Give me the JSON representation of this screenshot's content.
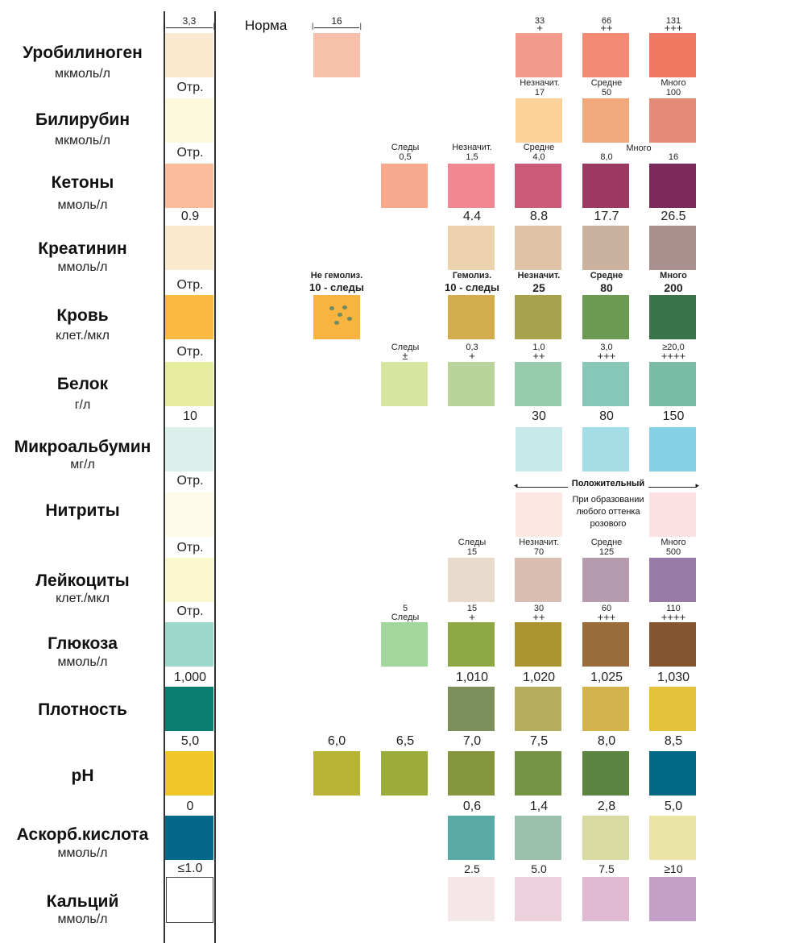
{
  "header": {
    "strip_width_label": "3,3",
    "norm_label": "Норма",
    "norm_width_label": "16"
  },
  "rows": [
    {
      "name": "Уробилиноген",
      "unit": "мкмоль/л",
      "ref_label": "",
      "ref_color": "#fbe9cf",
      "extra_label": "",
      "extra_color": "#f7c0aa",
      "pads": [
        {
          "color": "#f39b8b",
          "label": "33",
          "sub": "+"
        },
        {
          "color": "#f28973",
          "label": "66",
          "sub": "++"
        },
        {
          "color": "#ef7862",
          "label": "131",
          "sub": "+++"
        }
      ]
    },
    {
      "name": "Билирубин",
      "unit": "мкмоль/л",
      "ref_label": "Отр.",
      "ref_color": "#fdf9dc",
      "pads": [
        {
          "color": "#fdd19a",
          "label": "Незначит.",
          "sub": "17"
        },
        {
          "color": "#f2a87d",
          "label": "Средне",
          "sub": "50"
        },
        {
          "color": "#e38b77",
          "label": "Много",
          "sub": "100"
        }
      ]
    },
    {
      "name": "Кетоны",
      "unit": "ммоль/л",
      "ref_label": "Отр.",
      "ref_color": "#fbbc9c",
      "pads": [
        {
          "color": "#f8a88d",
          "label": "Следы",
          "sub": "0,5"
        },
        {
          "color": "#f18891",
          "label": "Незначит.",
          "sub": "1,5"
        },
        {
          "color": "#cd5a78",
          "label": "Средне",
          "sub": "4,0"
        },
        {
          "color": "#9c3a62",
          "label": "Много",
          "sub": "8,0"
        },
        {
          "color": "#7b2a5b",
          "label": "",
          "sub": "16"
        }
      ]
    },
    {
      "name": "Креатинин",
      "unit": "ммоль/л",
      "ref_label": "0.9",
      "ref_color": "#fbe9ce",
      "pads": [
        {
          "color": "#ecd3ad",
          "label": "4.4"
        },
        {
          "color": "#dfc1a6",
          "label": "8.8"
        },
        {
          "color": "#cbb29f",
          "label": "17.7"
        },
        {
          "color": "#a9908f",
          "label": "26.5"
        }
      ]
    },
    {
      "name": "Кровь",
      "unit": "клет./мкл",
      "ref_label": "Отр.",
      "ref_color": "#fbb940",
      "extra_label": "Не гемолиз.",
      "extra_sub": "10 - следы",
      "extra_color": "#f8b43e",
      "pads": [
        {
          "color": "#d3ad4b",
          "label": "Гемолиз.",
          "sub": "10 - следы"
        },
        {
          "color": "#a9a24c",
          "label": "Незначит.",
          "sub": "25"
        },
        {
          "color": "#6c9a52",
          "label": "Средне",
          "sub": "80"
        },
        {
          "color": "#397349",
          "label": "Много",
          "sub": "200"
        }
      ]
    },
    {
      "name": "Белок",
      "unit": "г/л",
      "ref_label": "Отр.",
      "ref_color": "#e6ec9e",
      "pads": [
        {
          "color": "#d6e6a1",
          "label": "Следы",
          "sub": "±"
        },
        {
          "color": "#b8d49b",
          "label": "0,3",
          "sub": "+"
        },
        {
          "color": "#96ccac",
          "label": "1,0",
          "sub": "++"
        },
        {
          "color": "#86c7b7",
          "label": "3,0",
          "sub": "+++"
        },
        {
          "color": "#79bba5",
          "label": "≥20,0",
          "sub": "++++"
        }
      ]
    },
    {
      "name": "Микроальбумин",
      "unit": "мг/л",
      "ref_label": "10",
      "ref_color": "#dbf0ea",
      "pads": [
        {
          "color": "#c8e9ea",
          "label": "30"
        },
        {
          "color": "#a5dde7",
          "label": "80"
        },
        {
          "color": "#84d1e4",
          "label": "150"
        }
      ]
    },
    {
      "name": "Нитриты",
      "unit": "",
      "ref_label": "Отр.",
      "ref_color": "#fffbea",
      "positive_label": "Положительный",
      "note": "При образовании любого оттенка розового",
      "pads": [
        {
          "color": "#fde7e2"
        },
        {
          "color": "#fde0e4"
        }
      ]
    },
    {
      "name": "Лейкоциты",
      "unit": "клет./мкл",
      "ref_label": "Отр.",
      "ref_color": "#fbf8d0",
      "pads": [
        {
          "color": "#e9dbcb",
          "label": "Следы",
          "sub": "15"
        },
        {
          "color": "#d9bdb1",
          "label": "Незначит.",
          "sub": "70"
        },
        {
          "color": "#b69baf",
          "label": "Средне",
          "sub": "125"
        },
        {
          "color": "#9a7ba8",
          "label": "Много",
          "sub": "500"
        }
      ]
    },
    {
      "name": "Глюкоза",
      "unit": "ммоль/л",
      "ref_label": "Отр.",
      "ref_color": "#9dd8cd",
      "pads": [
        {
          "color": "#a2d69d",
          "label": "5",
          "sub": "Следы"
        },
        {
          "color": "#8da845",
          "label": "15",
          "sub": "+"
        },
        {
          "color": "#a99430",
          "label": "30",
          "sub": "++"
        },
        {
          "color": "#9a6b3b",
          "label": "60",
          "sub": "+++"
        },
        {
          "color": "#84552e",
          "label": "110",
          "sub": "++++"
        }
      ]
    },
    {
      "name": "Плотность",
      "unit": "",
      "ref_label": "1,000",
      "ref_color": "#0a7d72",
      "pads": [
        {
          "color": "#7d8f5a",
          "label": "1,010"
        },
        {
          "color": "#b6ad5d",
          "label": "1,020"
        },
        {
          "color": "#d4b24c",
          "label": "1,025"
        },
        {
          "color": "#e6c23c",
          "label": "1,030"
        }
      ]
    },
    {
      "name": "pH",
      "unit": "",
      "ref_label": "5,0",
      "ref_color": "#f0c728",
      "pads": [
        {
          "color": "#b8b334",
          "label": "6,0"
        },
        {
          "color": "#9cac3a",
          "label": "6,5"
        },
        {
          "color": "#86963d",
          "label": "7,0"
        },
        {
          "color": "#749344",
          "label": "7,5"
        },
        {
          "color": "#5b8541",
          "label": "8,0"
        },
        {
          "color": "#006985",
          "label": "8,5"
        }
      ]
    },
    {
      "name": "Аскорб.кислота",
      "unit": "ммоль/л",
      "ref_label": "0",
      "ref_color": "#03688a",
      "pads": [
        {
          "color": "#5aaaa8",
          "label": "0,6"
        },
        {
          "color": "#9ac0ac",
          "label": "1,4"
        },
        {
          "color": "#d8dca2",
          "label": "2,8"
        },
        {
          "color": "#eae4a6",
          "label": "5,0"
        }
      ]
    },
    {
      "name": "Кальций",
      "unit": "ммоль/л",
      "ref_label": "≤1.0",
      "ref_color": "#ffffff",
      "pads": [
        {
          "color": "#f5e6e8",
          "label": "2.5"
        },
        {
          "color": "#ecd0dc",
          "label": "5.0"
        },
        {
          "color": "#dfb8d2",
          "label": "7.5"
        },
        {
          "color": "#c5a0c8",
          "label": "≥10"
        }
      ]
    }
  ]
}
